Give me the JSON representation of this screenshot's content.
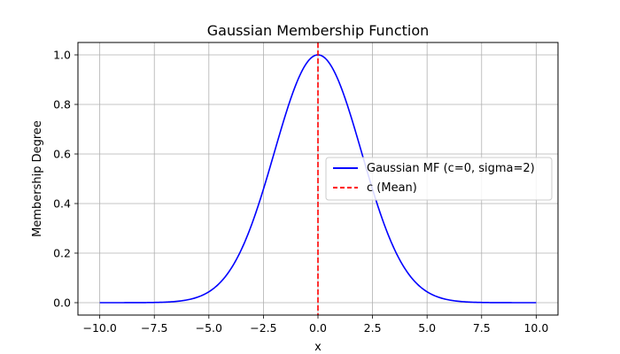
{
  "chart_data": {
    "type": "line",
    "title": "Gaussian Membership Function",
    "xlabel": "x",
    "ylabel": "Membership Degree",
    "xlim": [
      -11,
      11
    ],
    "ylim": [
      -0.05,
      1.05
    ],
    "grid": true,
    "legend_position": "center-right",
    "x_ticks": [
      -10,
      -7.5,
      -5,
      -2.5,
      0,
      2.5,
      5,
      7.5,
      10
    ],
    "x_tick_labels": [
      "−10.0",
      "−7.5",
      "−5.0",
      "−2.5",
      "0.0",
      "2.5",
      "5.0",
      "7.5",
      "10.0"
    ],
    "y_ticks": [
      0,
      0.2,
      0.4,
      0.6,
      0.8,
      1.0
    ],
    "y_tick_labels": [
      "0.0",
      "0.2",
      "0.4",
      "0.6",
      "0.8",
      "1.0"
    ],
    "series": [
      {
        "name": "Gaussian MF (c=0, sigma=2)",
        "color": "#0000ff",
        "style": "solid",
        "function": "gaussian",
        "c": 0,
        "sigma": 2,
        "x_range": [
          -10,
          10
        ]
      },
      {
        "name": "c (Mean)",
        "color": "#ff0000",
        "style": "dashed",
        "function": "vertical_line",
        "x": 0
      }
    ]
  }
}
